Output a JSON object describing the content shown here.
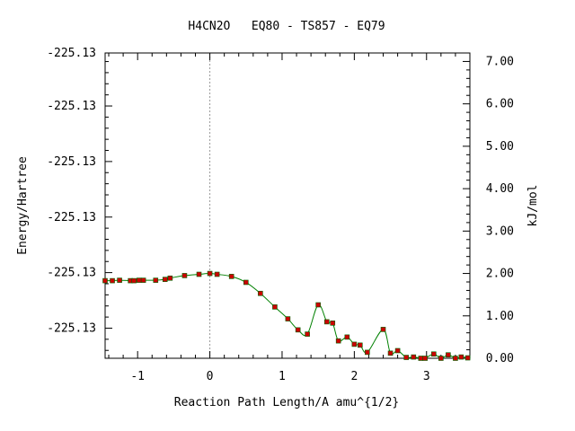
{
  "chart_data": {
    "type": "line",
    "title": "H4CN2O   EQ80 - TS857 - EQ79",
    "xlabel": "Reaction Path Length/A amu^{1/2}",
    "ylabel": "Energy/Hartree",
    "y2label": "kJ/mol",
    "xlim": [
      -1.45,
      3.6
    ],
    "ylim": [
      0.0,
      7.2
    ],
    "x_ticks": [
      -1,
      0,
      1,
      2,
      3
    ],
    "x_tick_labels": [
      "-1",
      "0",
      "1",
      "2",
      "3"
    ],
    "y_left_ticks": [
      0.71,
      2.02,
      3.33,
      4.64,
      5.95,
      7.26
    ],
    "y_left_tick_labels": [
      "-225.13",
      "-225.13",
      "-225.13",
      "-225.13",
      "-225.13",
      "-225.13"
    ],
    "y_right_ticks": [
      0,
      1,
      2,
      3,
      4,
      5,
      6,
      7
    ],
    "y_right_tick_labels": [
      "0.00",
      "1.00",
      "2.00",
      "3.00",
      "4.00",
      "5.00",
      "6.00",
      "7.00"
    ],
    "ts_marker_x": 0,
    "series": [
      {
        "color": "#008000",
        "marker_color": "#cc0000",
        "points": [
          [
            -1.45,
            1.83
          ],
          [
            -1.35,
            1.83
          ],
          [
            -1.25,
            1.84
          ],
          [
            -1.1,
            1.83
          ],
          [
            -1.05,
            1.83
          ],
          [
            -0.98,
            1.84
          ],
          [
            -0.92,
            1.84
          ],
          [
            -0.75,
            1.84
          ],
          [
            -0.62,
            1.86
          ],
          [
            -0.55,
            1.89
          ],
          [
            -0.35,
            1.95
          ],
          [
            -0.15,
            1.98
          ],
          [
            0.0,
            2.0
          ],
          [
            0.1,
            1.98
          ],
          [
            0.3,
            1.93
          ],
          [
            0.5,
            1.79
          ],
          [
            0.7,
            1.53
          ],
          [
            0.9,
            1.21
          ],
          [
            1.08,
            0.93
          ],
          [
            1.22,
            0.67
          ],
          [
            1.35,
            0.57
          ],
          [
            1.5,
            1.26
          ],
          [
            1.62,
            0.86
          ],
          [
            1.7,
            0.83
          ],
          [
            1.78,
            0.41
          ],
          [
            1.9,
            0.5
          ],
          [
            2.0,
            0.33
          ],
          [
            2.08,
            0.31
          ],
          [
            2.18,
            0.14
          ],
          [
            2.4,
            0.68
          ],
          [
            2.5,
            0.12
          ],
          [
            2.6,
            0.18
          ],
          [
            2.72,
            0.02
          ],
          [
            2.82,
            0.03
          ],
          [
            2.92,
            0.0
          ],
          [
            2.98,
            0.0
          ],
          [
            3.1,
            0.1
          ],
          [
            3.2,
            0.0
          ],
          [
            3.3,
            0.08
          ],
          [
            3.4,
            0.0
          ],
          [
            3.48,
            0.03
          ],
          [
            3.57,
            0.01
          ]
        ]
      }
    ]
  }
}
